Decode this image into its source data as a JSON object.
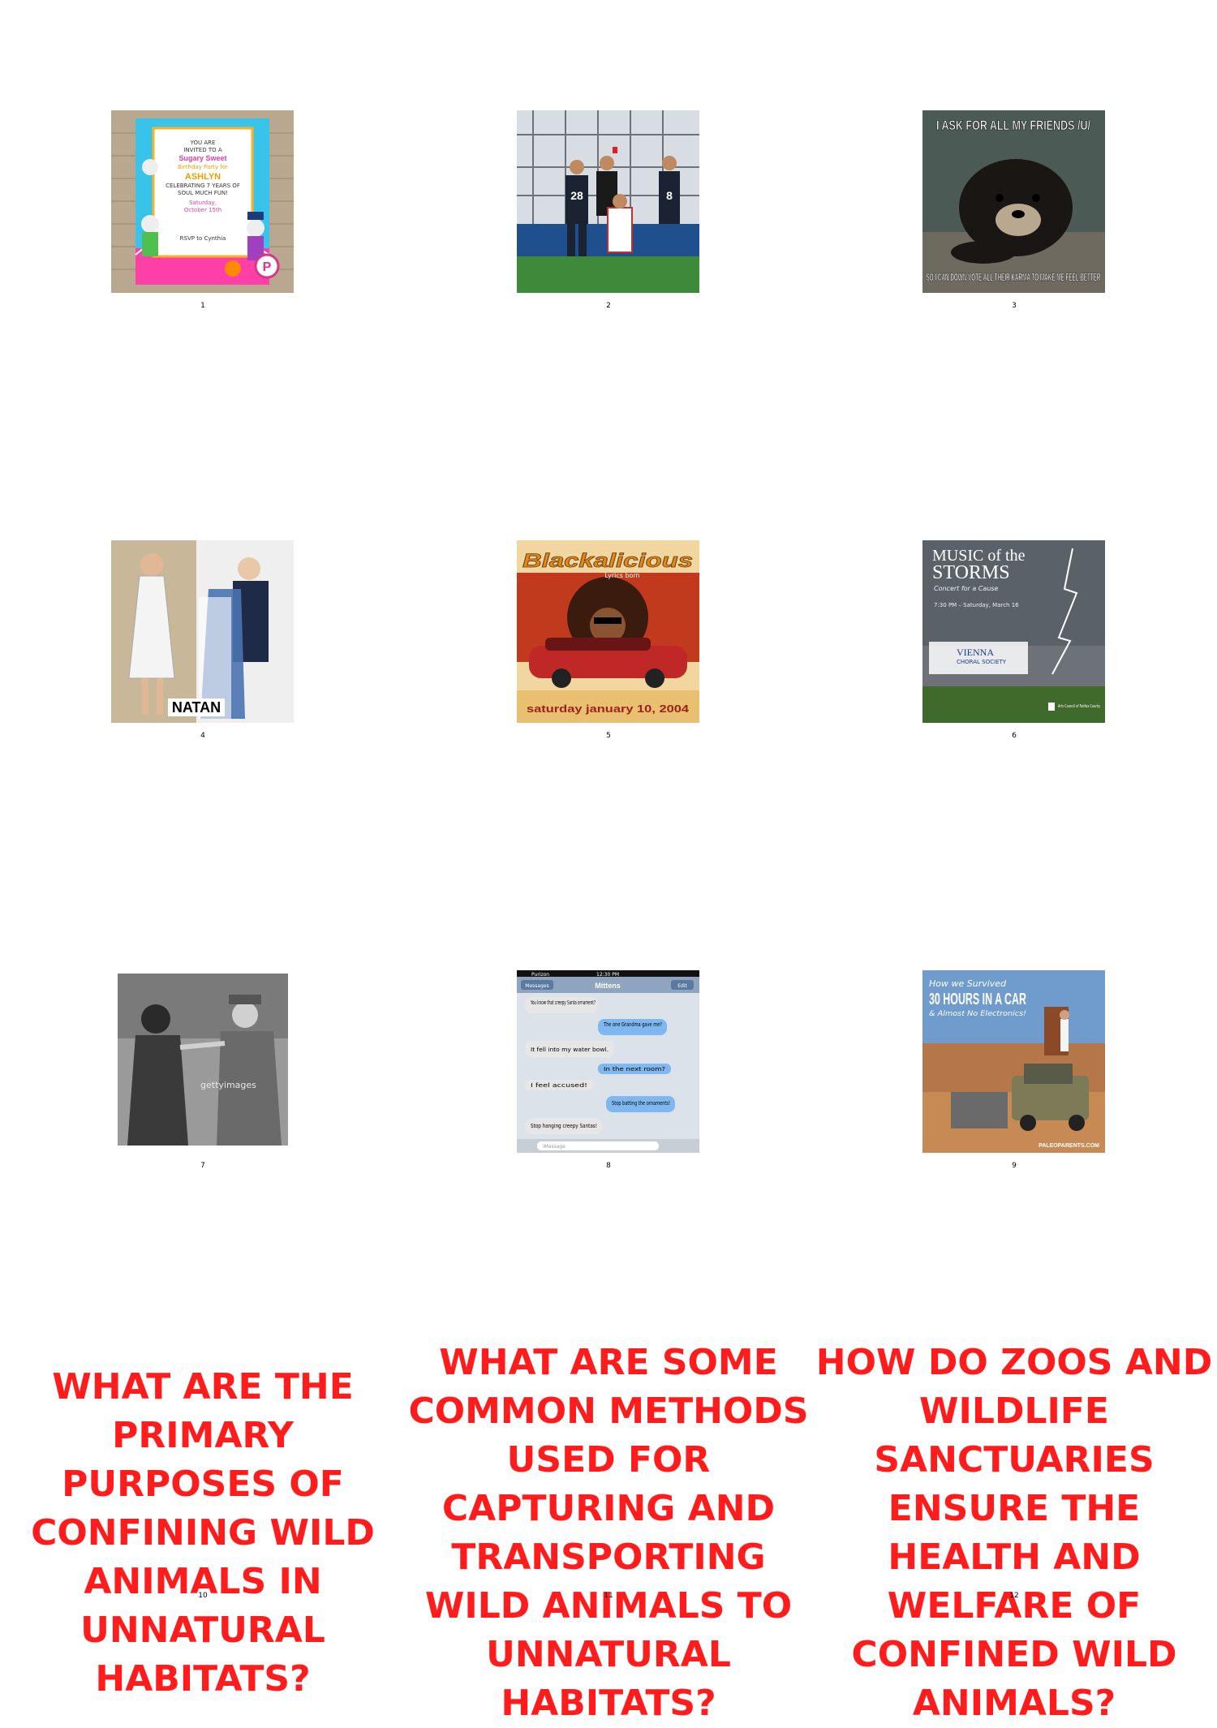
{
  "cells": [
    {
      "number": "1",
      "label": "birthday-invitation",
      "text": {
        "line1": "YOU ARE",
        "line2": "INVITED TO A",
        "line3": "Sugary Sweet",
        "line4": "Birthday Party for",
        "line5": "ASHLYN",
        "line6": "CELEBRATING 7 YEARS OF",
        "line7": "SOUL MUCH FUN!",
        "line8": "Saturday,",
        "line9": "October 15th",
        "line10": "RSVP to Cynthia",
        "badge": "P"
      }
    },
    {
      "number": "2",
      "label": "football-referee-photo",
      "text": {
        "shirt1": "28",
        "shirt2": "8"
      }
    },
    {
      "number": "3",
      "label": "confession-bear-meme",
      "text": {
        "top": "I ASK FOR ALL MY FRIENDS /U/",
        "bottom": "SO I CAN DOWN VOTE ALL THEIR KARMA TO MAKE ME FEEL BETTER"
      }
    },
    {
      "number": "4",
      "label": "fashion-designer-photo",
      "text": {
        "caption": "NATAN"
      }
    },
    {
      "number": "5",
      "label": "blackalicious-poster",
      "text": {
        "title": "Blackalicious",
        "sub": "Lyrics born",
        "date": "saturday january 10, 2004"
      }
    },
    {
      "number": "6",
      "label": "music-of-the-storms-poster",
      "text": {
        "title1": "MUSIC of the",
        "title2": "STORMS",
        "sub": "Concert for a Cause",
        "time": "7:30 PM – Saturday, March 16",
        "org": "VIENNA",
        "org2": "CHORAL SOCIETY",
        "footer": "Arts Council of Fairfax County"
      }
    },
    {
      "number": "7",
      "label": "vintage-movie-still",
      "text": {
        "watermark": "gettyimages"
      }
    },
    {
      "number": "8",
      "label": "text-message-screenshot",
      "text": {
        "carrier": "Purizon",
        "time": "12:30 PM",
        "back": "Messages",
        "contact": "Mittens",
        "edit": "Edit",
        "messages": [
          {
            "side": "left",
            "text": "You know that creepy Santa ornament?"
          },
          {
            "side": "right",
            "text": "The one Grandma gave me?"
          },
          {
            "side": "left",
            "text": "It fell into my water bowl."
          },
          {
            "side": "right",
            "text": "In the next room?"
          },
          {
            "side": "left",
            "text": "I feel accused!"
          },
          {
            "side": "right",
            "text": "Stop batting the ornaments!"
          },
          {
            "side": "left",
            "text": "Stop hanging creepy Santas!"
          }
        ],
        "input": "iMessage"
      }
    },
    {
      "number": "9",
      "label": "road-trip-photo",
      "text": {
        "title1": "How we Survived",
        "title2": "30 HOURS IN A CAR",
        "title3": "& Almost No Electronics!",
        "footer": "PALEOPARENTS.COM"
      }
    },
    {
      "number": "10",
      "label": "question",
      "question": "What are the primary purposes of confining wild animals in unnatural habitats?"
    },
    {
      "number": "11",
      "label": "question",
      "question": "What are some common methods used for capturing and transporting wild animals to unnatural habitats?"
    },
    {
      "number": "12",
      "label": "question",
      "question": "How do zoos and wildlife sanctuaries ensure the health and welfare of confined wild animals?"
    }
  ],
  "colors": {
    "question": "#ff1c1c",
    "background": "#ffffff"
  }
}
